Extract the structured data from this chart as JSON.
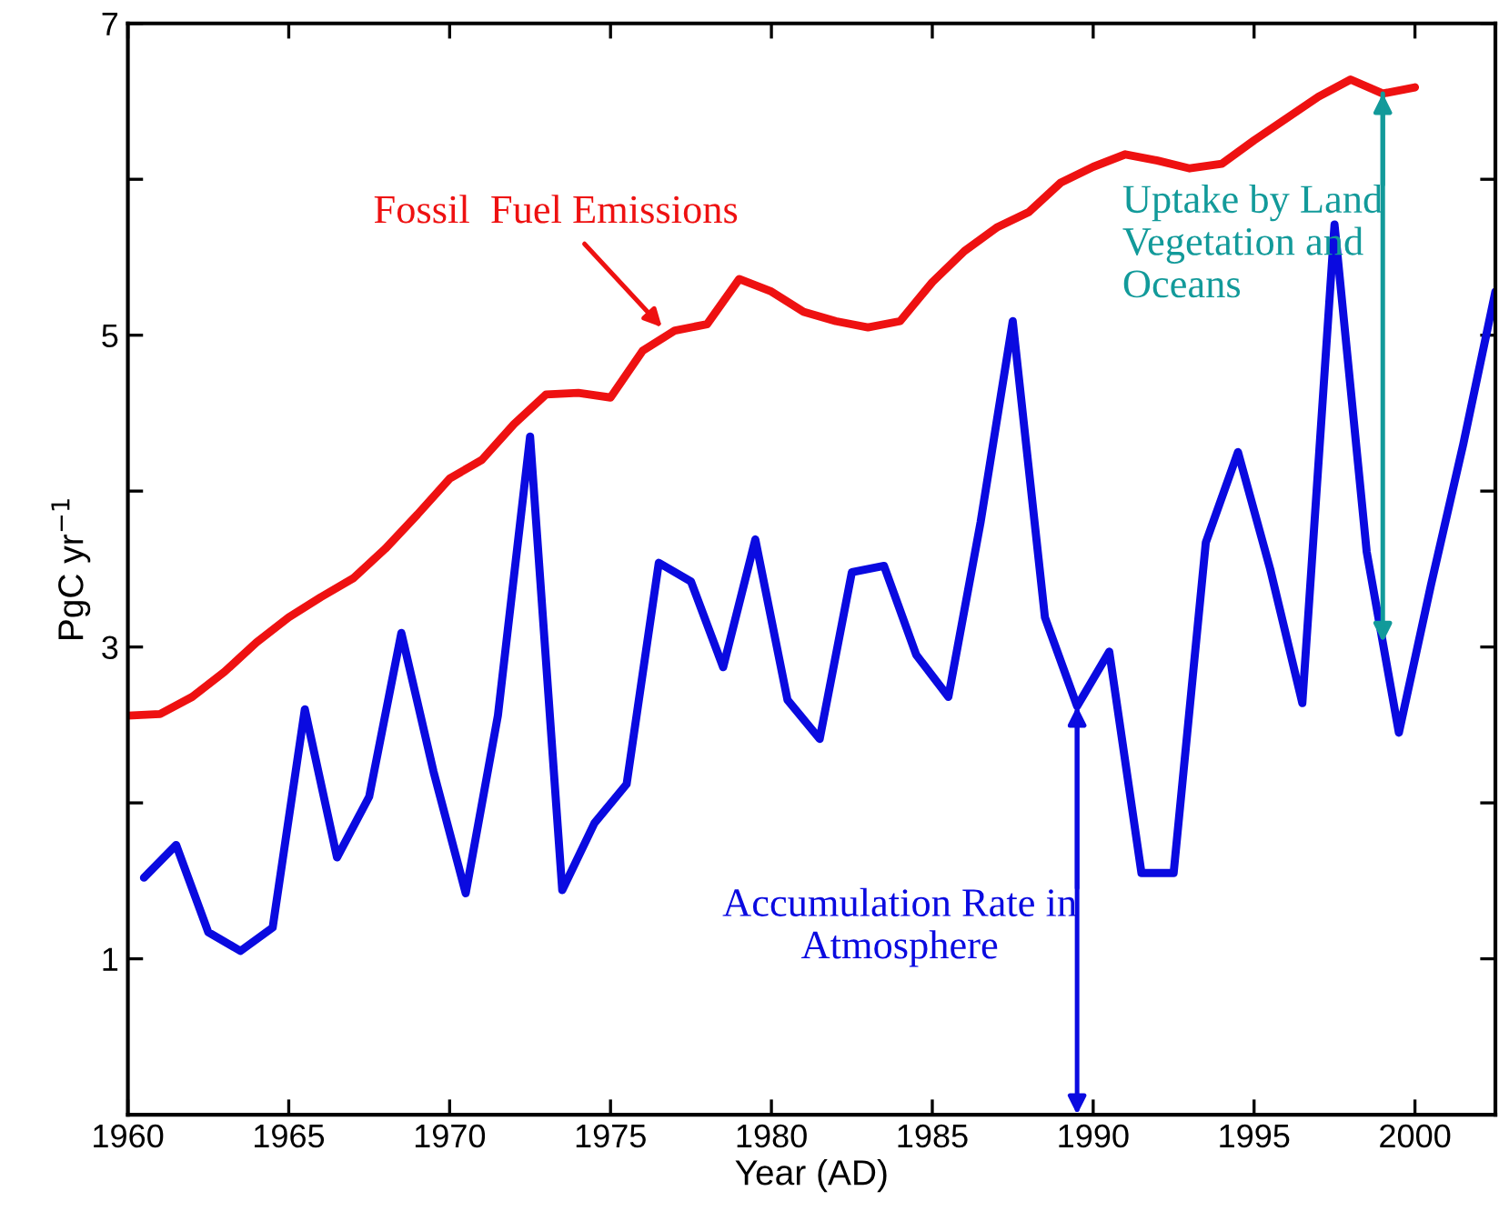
{
  "chart_data": {
    "type": "line",
    "xlabel": "Year (AD)",
    "ylabel": "PgC yr$^{−1}$",
    "xlim": [
      1960,
      2002.5
    ],
    "xticks": [
      1960,
      1965,
      1970,
      1975,
      1980,
      1985,
      1990,
      1995,
      2000
    ],
    "ylim": [
      0,
      7
    ],
    "yticks": [
      1,
      {
        "value": 2,
        "label": null
      },
      3,
      {
        "value": 4,
        "label": null
      },
      5,
      {
        "value": 6,
        "label": null
      },
      7
    ],
    "grid": false,
    "legend": false,
    "marker": "none",
    "line_style": "solid",
    "series": [
      {
        "color": "#ee1111",
        "x": [
          1960,
          1961,
          1962,
          1963,
          1964,
          1965,
          1966,
          1967,
          1968,
          1969,
          1970,
          1971,
          1972,
          1973,
          1974,
          1975,
          1976,
          1977,
          1978,
          1979,
          1980,
          1981,
          1982,
          1983,
          1984,
          1985,
          1986,
          1987,
          1988,
          1989,
          1990,
          1991,
          1992,
          1993,
          1994,
          1995,
          1996,
          1997,
          1998,
          1999,
          2000
        ],
        "values": [
          2.56,
          2.57,
          2.68,
          2.84,
          3.03,
          3.19,
          3.32,
          3.44,
          3.63,
          3.85,
          4.08,
          4.2,
          4.43,
          4.62,
          4.63,
          4.6,
          4.9,
          5.03,
          5.07,
          5.36,
          5.28,
          5.15,
          5.09,
          5.05,
          5.09,
          5.34,
          5.54,
          5.69,
          5.79,
          5.98,
          6.08,
          6.16,
          6.12,
          6.07,
          6.1,
          6.25,
          6.39,
          6.53,
          6.64,
          6.55,
          6.59
        ]
      },
      {
        "color": "#0a0ae0",
        "x": [
          1960.5,
          1961.5,
          1962.5,
          1963.5,
          1964.5,
          1965.5,
          1966.5,
          1967.5,
          1968.5,
          1969.5,
          1970.5,
          1971.5,
          1972.5,
          1973.5,
          1974.5,
          1975.5,
          1976.5,
          1977.5,
          1978.5,
          1979.5,
          1980.5,
          1981.5,
          1982.5,
          1983.5,
          1984.5,
          1985.5,
          1986.5,
          1987.5,
          1988.5,
          1989.5,
          1990.5,
          1991.5,
          1992.5,
          1993.5,
          1994.5,
          1995.5,
          1996.5,
          1997.5,
          1998.5,
          1999.5,
          2000.5,
          2001.5,
          2002.5
        ],
        "values": [
          1.52,
          1.73,
          1.17,
          1.05,
          1.2,
          2.6,
          1.65,
          2.04,
          3.09,
          2.2,
          1.42,
          2.56,
          4.35,
          1.44,
          1.87,
          2.12,
          3.54,
          3.42,
          2.87,
          3.69,
          2.66,
          2.41,
          3.48,
          3.52,
          2.95,
          2.68,
          3.8,
          5.09,
          3.19,
          2.62,
          2.97,
          1.55,
          1.55,
          3.67,
          4.25,
          3.5,
          2.64,
          5.71,
          3.61,
          2.45,
          3.4,
          4.3,
          5.28
        ]
      }
    ],
    "annotations": [
      {
        "text": "Fossil  Fuel Emissions",
        "x": 1976.6,
        "y": 5.05
      },
      {
        "text": "Uptake by Land\nVegetation and\nOceans",
        "x": 1999,
        "y": 6.55
      },
      {
        "text": "Accumulation Rate in\nAtmosphere",
        "x": 1989.5,
        "y": 2.62
      }
    ]
  }
}
